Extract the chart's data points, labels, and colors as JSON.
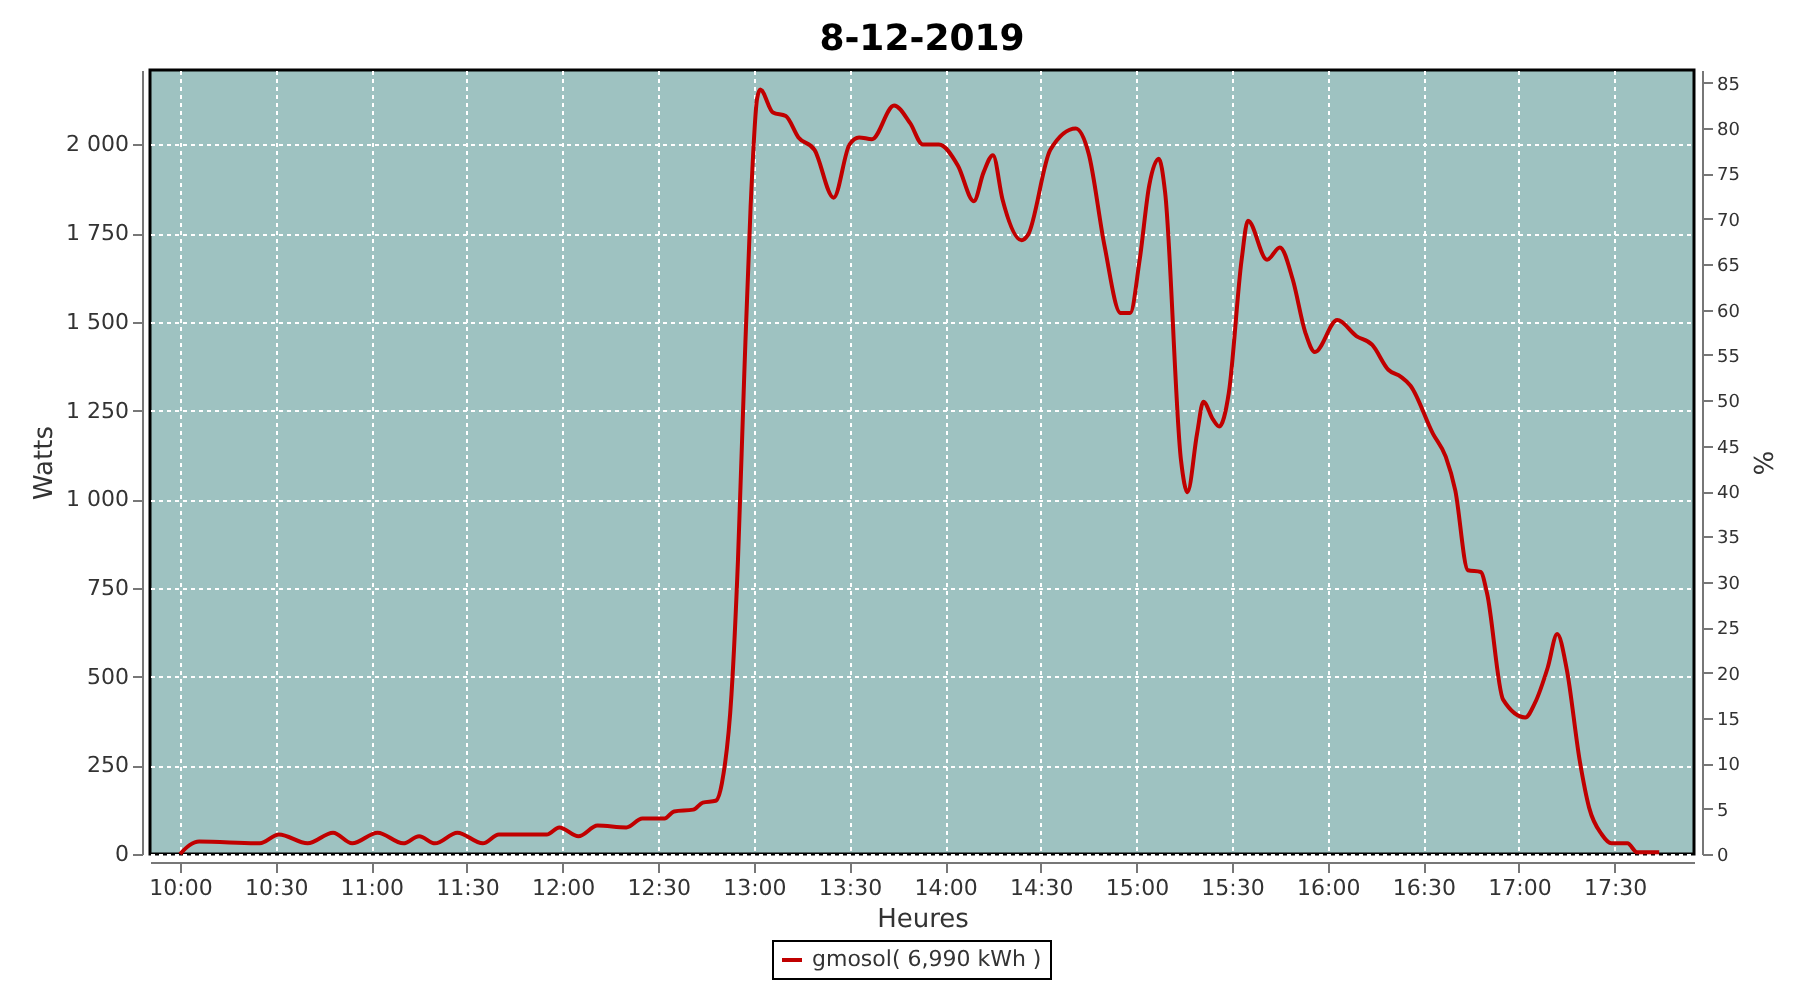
{
  "chart_data": {
    "type": "line",
    "title": "8-12-2019",
    "xlabel": "Heures",
    "ylabel": "Watts",
    "y2label": "%",
    "xlim": [
      9.843,
      17.915
    ],
    "ylim": [
      0,
      2210
    ],
    "y2lim": [
      0,
      86.4
    ],
    "xticks": [
      {
        "value": 10,
        "label": "10:00"
      },
      {
        "value": 10.5,
        "label": "10:30"
      },
      {
        "value": 11,
        "label": "11:00"
      },
      {
        "value": 11.5,
        "label": "11:30"
      },
      {
        "value": 12,
        "label": "12:00"
      },
      {
        "value": 12.5,
        "label": "12:30"
      },
      {
        "value": 13,
        "label": "13:00"
      },
      {
        "value": 13.5,
        "label": "13:30"
      },
      {
        "value": 14,
        "label": "14:00"
      },
      {
        "value": 14.5,
        "label": "14:30"
      },
      {
        "value": 15,
        "label": "15:00"
      },
      {
        "value": 15.5,
        "label": "15:30"
      },
      {
        "value": 16,
        "label": "16:00"
      },
      {
        "value": 16.5,
        "label": "16:30"
      },
      {
        "value": 17,
        "label": "17:00"
      },
      {
        "value": 17.5,
        "label": "17:30"
      }
    ],
    "yticks": [
      0,
      250,
      500,
      750,
      {
        "value": 1000,
        "label": "1 000"
      },
      {
        "value": 1250,
        "label": "1 250"
      },
      {
        "value": 1500,
        "label": "1 500"
      },
      {
        "value": 1750,
        "label": "1 750"
      },
      {
        "value": 2000,
        "label": "2 000"
      }
    ],
    "y2ticks": [
      0,
      5,
      10,
      15,
      20,
      25,
      30,
      35,
      40,
      45,
      50,
      55,
      60,
      65,
      70,
      75,
      80,
      85
    ],
    "grid": true,
    "legend": "bottom",
    "line_style": "solid",
    "series": [
      {
        "name": "gmosol( 6,990 kWh )",
        "color": "#c00000",
        "x": [
          10.0,
          10.05,
          10.1,
          10.417,
          10.517,
          10.667,
          10.8,
          10.9,
          11.033,
          11.167,
          11.25,
          11.333,
          11.45,
          11.583,
          11.667,
          11.917,
          11.983,
          12.083,
          12.183,
          12.333,
          12.417,
          12.533,
          12.583,
          12.683,
          12.733,
          12.8,
          12.833,
          12.883,
          12.917,
          12.95,
          12.983,
          13.017,
          13.033,
          13.1,
          13.167,
          13.233,
          13.317,
          13.417,
          13.5,
          13.55,
          13.617,
          13.733,
          13.817,
          13.883,
          13.967,
          14.067,
          14.15,
          14.2,
          14.25,
          14.3,
          14.4,
          14.433,
          14.55,
          14.683,
          14.75,
          14.833,
          14.917,
          14.967,
          15.017,
          15.067,
          15.117,
          15.15,
          15.233,
          15.267,
          15.317,
          15.35,
          15.4,
          15.433,
          15.483,
          15.55,
          15.583,
          15.683,
          15.75,
          15.817,
          15.883,
          15.933,
          16.05,
          16.15,
          16.233,
          16.317,
          16.383,
          16.433,
          16.55,
          16.617,
          16.667,
          16.733,
          16.8,
          16.833,
          16.917,
          17.033,
          17.083,
          17.15,
          17.2,
          17.25,
          17.317,
          17.367,
          17.433,
          17.483,
          17.567,
          17.617,
          17.733
        ],
        "values": [
          0,
          25,
          35,
          30,
          55,
          30,
          60,
          30,
          60,
          30,
          50,
          30,
          60,
          30,
          55,
          55,
          75,
          50,
          80,
          75,
          100,
          100,
          120,
          125,
          145,
          150,
          200,
          450,
          830,
          1355,
          1825,
          2130,
          2155,
          2090,
          2080,
          2020,
          1985,
          1850,
          2000,
          2020,
          2015,
          2110,
          2060,
          2000,
          2000,
          1940,
          1840,
          1920,
          1970,
          1845,
          1730,
          1745,
          1985,
          2045,
          1975,
          1715,
          1525,
          1525,
          1675,
          1885,
          1960,
          1865,
          1110,
          1020,
          1185,
          1275,
          1225,
          1205,
          1300,
          1675,
          1785,
          1675,
          1710,
          1620,
          1470,
          1415,
          1505,
          1460,
          1435,
          1365,
          1345,
          1320,
          1185,
          1120,
          1025,
          800,
          795,
          735,
          435,
          385,
          425,
          525,
          620,
          520,
          265,
          130,
          55,
          30,
          30,
          5,
          5
        ]
      }
    ]
  }
}
